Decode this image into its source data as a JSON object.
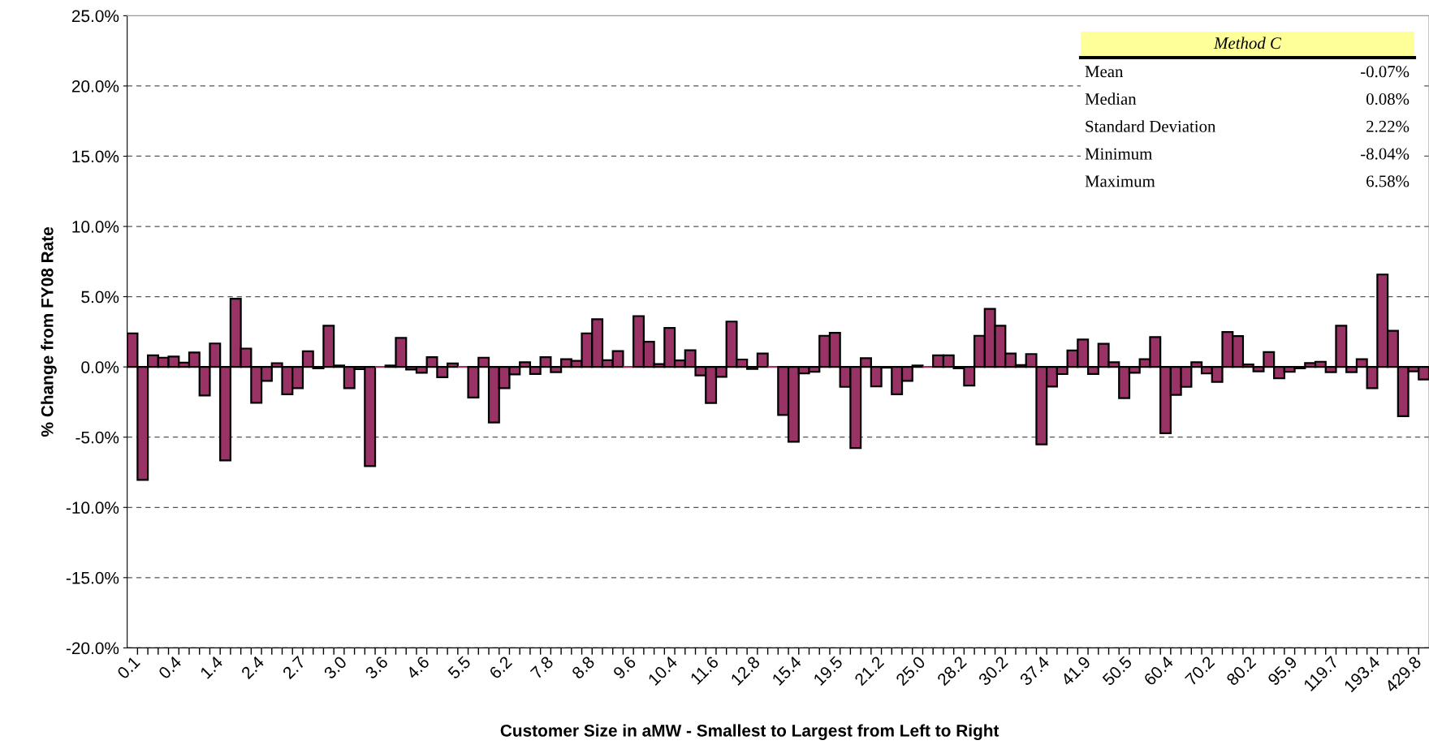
{
  "chart_data": {
    "type": "bar",
    "xlabel": "Customer Size in aMW - Smallest to Largest from Left to Right",
    "ylabel": "% Change from FY08 Rate",
    "categories": [
      "0.1",
      null,
      null,
      null,
      "0.4",
      null,
      null,
      null,
      "1.4",
      null,
      null,
      null,
      "2.4",
      null,
      null,
      null,
      "2.7",
      null,
      null,
      null,
      "3.0",
      null,
      null,
      null,
      "3.6",
      null,
      null,
      null,
      "4.6",
      null,
      null,
      null,
      "5.5",
      null,
      null,
      null,
      "6.2",
      null,
      null,
      null,
      "7.8",
      null,
      null,
      null,
      "8.8",
      null,
      null,
      null,
      "9.6",
      null,
      null,
      null,
      "10.4",
      null,
      null,
      null,
      "11.6",
      null,
      null,
      null,
      "12.8",
      null,
      null,
      null,
      "15.4",
      null,
      null,
      null,
      "19.5",
      null,
      null,
      null,
      "21.2",
      null,
      null,
      null,
      "25.0",
      null,
      null,
      null,
      "28.2",
      null,
      null,
      null,
      "30.2",
      null,
      null,
      null,
      "37.4",
      null,
      null,
      null,
      "41.9",
      null,
      null,
      null,
      "50.5",
      null,
      null,
      null,
      "60.4",
      null,
      null,
      null,
      "70.2",
      null,
      null,
      null,
      "80.2",
      null,
      null,
      null,
      "95.9",
      null,
      null,
      null,
      "119.7",
      null,
      null,
      null,
      "193.4",
      null,
      null,
      null,
      "429.8",
      null
    ],
    "values": [
      2.38,
      -8.04,
      0.83,
      0.66,
      0.74,
      0.3,
      1.03,
      -2.04,
      1.67,
      -6.65,
      4.86,
      1.31,
      -2.55,
      -0.99,
      0.27,
      -1.95,
      -1.52,
      1.12,
      -0.1,
      2.94,
      0.1,
      -1.51,
      -0.15,
      -7.06,
      0.0,
      0.1,
      2.07,
      -0.18,
      -0.41,
      0.69,
      -0.73,
      0.25,
      0.0,
      -2.18,
      0.66,
      -3.95,
      -1.52,
      -0.53,
      0.34,
      -0.5,
      0.69,
      -0.37,
      0.55,
      0.43,
      2.38,
      3.4,
      0.48,
      1.13,
      0.0,
      3.62,
      1.79,
      0.2,
      2.77,
      0.46,
      1.19,
      -0.6,
      -2.57,
      -0.71,
      3.23,
      0.53,
      -0.14,
      0.96,
      0.0,
      -3.42,
      -5.32,
      -0.46,
      -0.35,
      2.22,
      2.43,
      -1.42,
      -5.78,
      0.62,
      -1.38,
      -0.05,
      -1.95,
      -0.99,
      0.1,
      0.0,
      0.82,
      0.82,
      -0.1,
      -1.33,
      2.22,
      4.13,
      2.93,
      0.96,
      0.14,
      0.92,
      -5.51,
      -1.4,
      -0.51,
      1.17,
      1.95,
      -0.5,
      1.65,
      0.34,
      -2.22,
      -0.41,
      0.55,
      2.13,
      -4.72,
      -1.99,
      -1.42,
      0.34,
      -0.46,
      -1.06,
      2.48,
      2.2,
      0.18,
      -0.32,
      1.06,
      -0.8,
      -0.35,
      -0.1,
      0.28,
      0.37,
      -0.37,
      2.94,
      -0.37,
      0.55,
      -1.52,
      6.58,
      2.57,
      -3.51,
      -0.32,
      -0.89
    ],
    "color": "#993366",
    "ylim": [
      -20,
      25
    ],
    "yticks": [
      {
        "value": -20,
        "label": "-20.0%"
      },
      {
        "value": -15,
        "label": "-15.0%"
      },
      {
        "value": -10,
        "label": "-10.0%"
      },
      {
        "value": -5,
        "label": "-5.0%"
      },
      {
        "value": 0,
        "label": "0.0%"
      },
      {
        "value": 5,
        "label": "5.0%"
      },
      {
        "value": 10,
        "label": "10.0%"
      },
      {
        "value": 15,
        "label": "15.0%"
      },
      {
        "value": 20,
        "label": "20.0%"
      },
      {
        "value": 25,
        "label": "25.0%"
      }
    ],
    "grid": "y",
    "annotations": [
      "Method C",
      "Mean",
      "-0.07%",
      "Median",
      "0.08%",
      "Standard Deviation",
      "2.22%",
      "Minimum",
      "-8.04%",
      "Maximum",
      "6.58%"
    ]
  }
}
